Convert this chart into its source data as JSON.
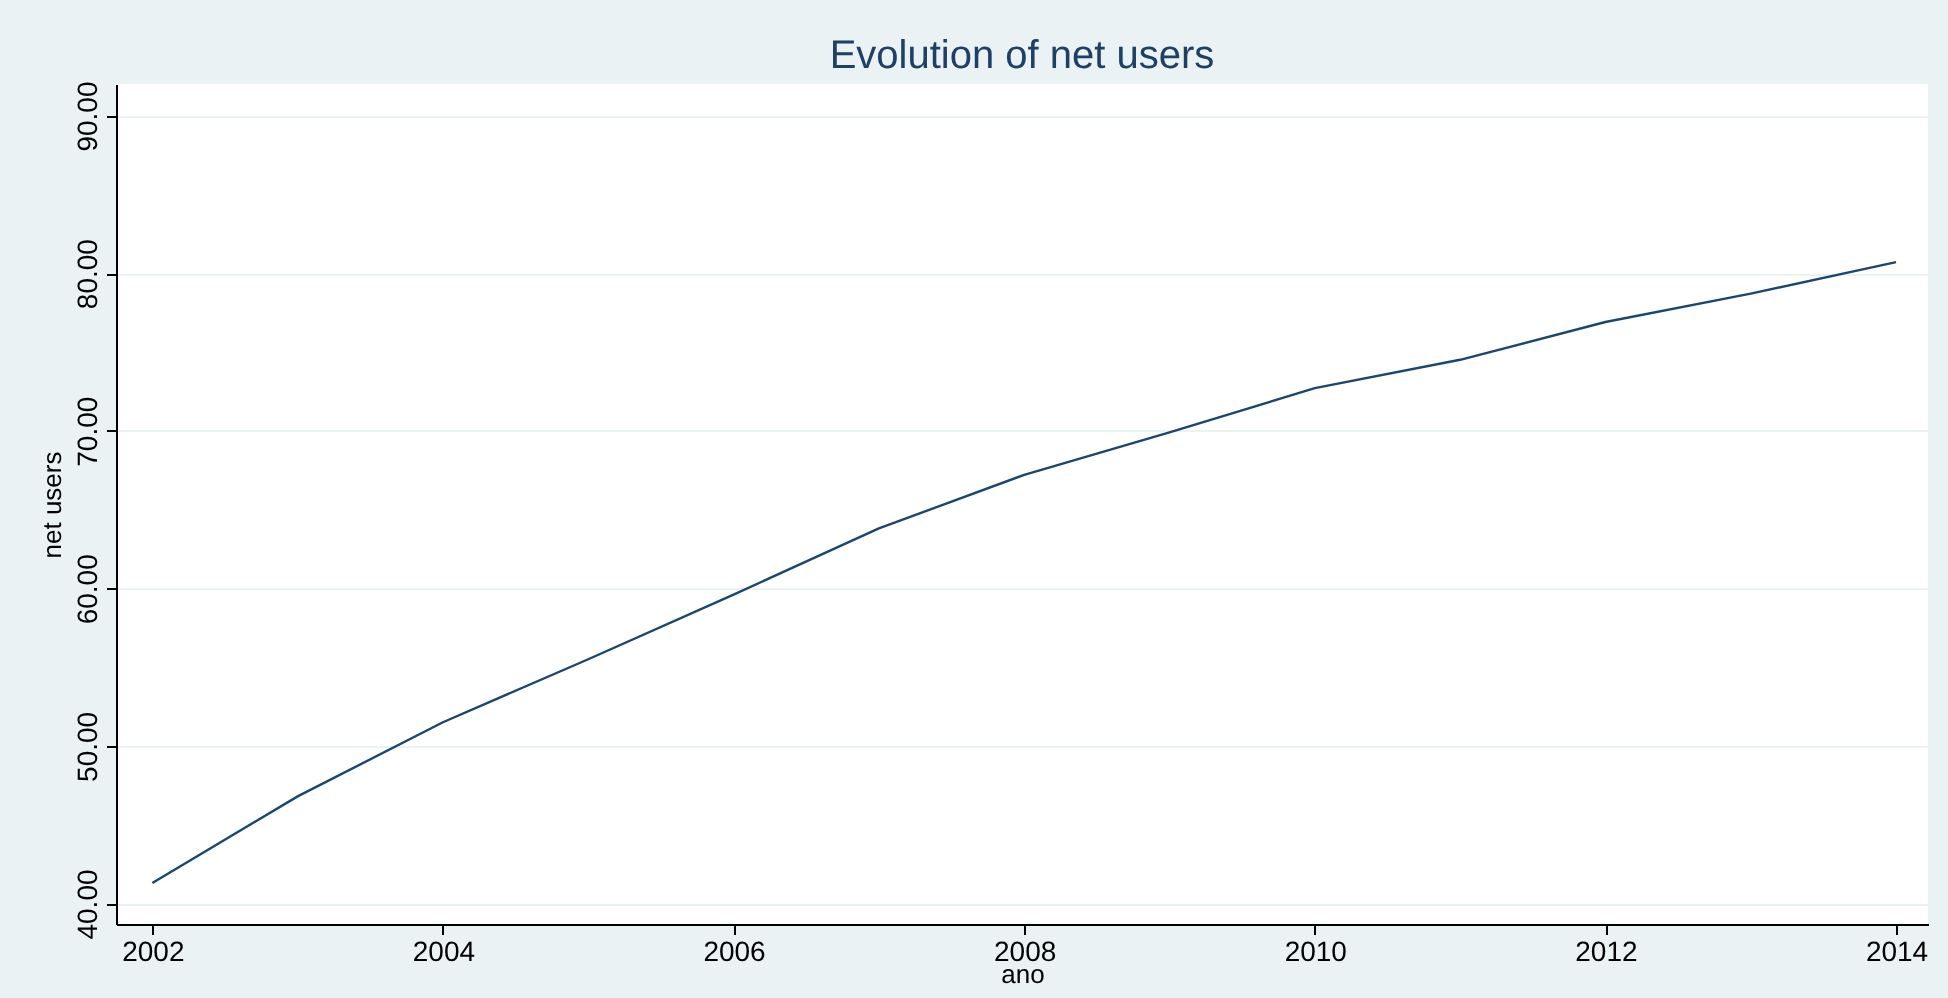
{
  "chart_data": {
    "type": "line",
    "title": "Evolution of net users",
    "xlabel": "ano",
    "ylabel": "net users",
    "x": [
      2002,
      2003,
      2004,
      2005,
      2006,
      2007,
      2008,
      2009,
      2010,
      2011,
      2012,
      2013,
      2014
    ],
    "series": [
      {
        "color": "#1a476f",
        "values": [
          41.3,
          46.8,
          51.5,
          55.5,
          59.6,
          63.8,
          67.2,
          69.9,
          72.7,
          74.5,
          76.9,
          78.7,
          80.7
        ]
      }
    ],
    "xlim": [
      2001.75,
      2014.22
    ],
    "ylim": [
      38.7,
      92
    ],
    "xticks": [
      2002,
      2004,
      2006,
      2008,
      2010,
      2012,
      2014
    ],
    "yticks": [
      {
        "value": 40,
        "label": "40.00"
      },
      {
        "value": 50,
        "label": "50.00"
      },
      {
        "value": 60,
        "label": "60.00"
      },
      {
        "value": 70,
        "label": "70.00"
      },
      {
        "value": 80,
        "label": "80.00"
      },
      {
        "value": 90,
        "label": "90.00"
      }
    ],
    "grid": "y",
    "marker": "none",
    "line_style": "solid"
  }
}
